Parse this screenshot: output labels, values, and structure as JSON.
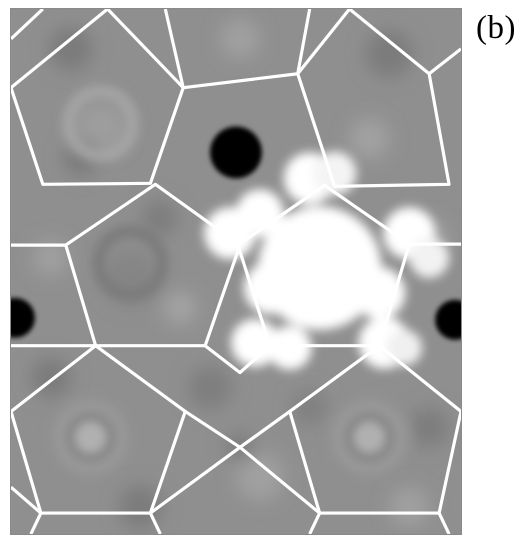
{
  "figure": {
    "panel_label": "(b)",
    "description_colors": {
      "background_gray": "#8f8f8f",
      "bright_cluster": "#ffffff",
      "dark_spots": "#000000",
      "tiling_lines": "#ffffff"
    }
  }
}
